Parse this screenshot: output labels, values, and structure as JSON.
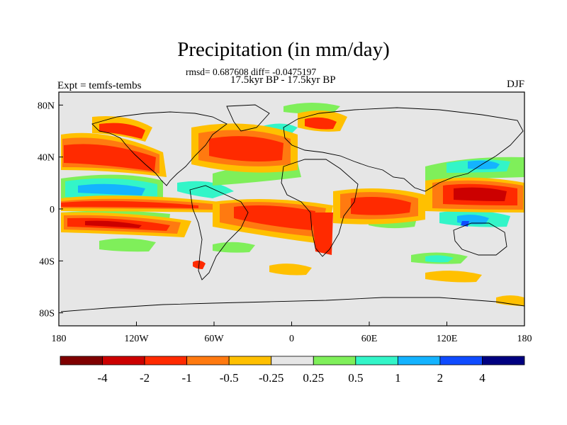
{
  "title": "Precipitation (in mm/day)",
  "stats": {
    "rmsd_label": "rmsd=",
    "rmsd_value": "0.687608",
    "diff_label": "diff=",
    "diff_value": "-0.0475197"
  },
  "period": "17.5kyr BP - 17.5kyr BP",
  "experiment": "Expt = temfs-tembs",
  "season": "DJF",
  "map": {
    "projection": "cylindrical equidistant",
    "lon_range": [
      -180,
      180
    ],
    "lat_range": [
      -90,
      90
    ],
    "ocean_land_background": "#e6e6e6",
    "coastline_color": "#000000",
    "lon_ticks": [
      {
        "value": -180,
        "label": "180"
      },
      {
        "value": -120,
        "label": "120W"
      },
      {
        "value": -60,
        "label": "60W"
      },
      {
        "value": 0,
        "label": "0"
      },
      {
        "value": 60,
        "label": "60E"
      },
      {
        "value": 120,
        "label": "120E"
      },
      {
        "value": 180,
        "label": "180"
      }
    ],
    "lat_ticks": [
      {
        "value": 80,
        "label": "80N"
      },
      {
        "value": 40,
        "label": "40N"
      },
      {
        "value": 0,
        "label": "0"
      },
      {
        "value": -40,
        "label": "40S"
      },
      {
        "value": -80,
        "label": "80S"
      }
    ]
  },
  "colorbar": {
    "colors": [
      "#7f0000",
      "#cc0000",
      "#ff2a00",
      "#ff7a10",
      "#ffc000",
      "#e6e6e6",
      "#7fef5a",
      "#33f5c8",
      "#14b3ff",
      "#0f4bff",
      "#000080"
    ],
    "labels": [
      "-4",
      "-2",
      "-1",
      "-0.5",
      "-0.25",
      "0.25",
      "0.5",
      "1",
      "2",
      "4"
    ]
  }
}
